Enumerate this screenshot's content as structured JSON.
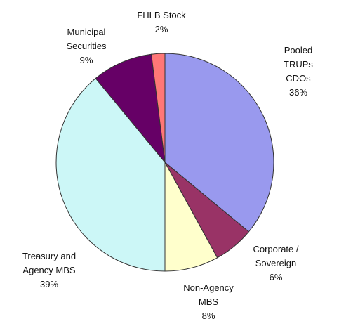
{
  "chart_data": {
    "type": "pie",
    "categories": [
      "Pooled TRUPs CDOs",
      "Corporate / Sovereign",
      "Non-Agency MBS",
      "Treasury and Agency MBS",
      "Municipal Securities",
      "FHLB Stock"
    ],
    "values": [
      36,
      6,
      8,
      39,
      9,
      2
    ],
    "value_labels": [
      "36%",
      "6%",
      "8%",
      "39%",
      "9%",
      "2%"
    ],
    "colors": [
      "#9999ee",
      "#993366",
      "#ffffcc",
      "#ccf7f7",
      "#660066",
      "#ff7777"
    ]
  }
}
